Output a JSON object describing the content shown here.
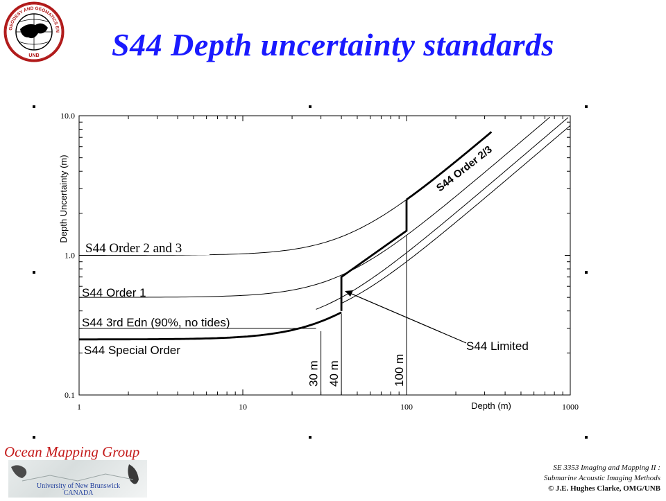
{
  "slide": {
    "title": "S44 Depth uncertainty standards",
    "logo_text_top": "GEODESY AND GEOMATICS ENGINEERING",
    "logo_text_bottom": "UNB",
    "footer_group": "Ocean Mapping Group",
    "footer_university": "University of New Brunswick",
    "footer_country": "CANADA",
    "course_line1": "SE 3353 Imaging and Mapping II :",
    "course_line2": "Submarine Acoustic Imaging Methods",
    "copyright": "© J.E. Hughes Clarke, OMG/UNB"
  },
  "chart_data": {
    "type": "line",
    "title": "",
    "xlabel": "Depth (m)",
    "ylabel": "Depth Uncertainty (m)",
    "xscale": "log",
    "yscale": "log",
    "xlim": [
      1,
      1000
    ],
    "ylim": [
      0.1,
      10.0
    ],
    "x_tick_labels": [
      "1",
      "10",
      "100",
      "1000"
    ],
    "y_tick_labels": [
      "0.1",
      "1.0",
      "10.0"
    ],
    "grid": false,
    "legend": "none",
    "series": [
      {
        "name": "S44 Order 2 and 3",
        "a": 1.0,
        "b": 0.023,
        "style": "thin",
        "x_end": 200
      },
      {
        "name": "S44 Order 1",
        "a": 0.5,
        "b": 0.013,
        "style": "thin",
        "x_end": 1000
      },
      {
        "name": "S44 3rd Edn (90%, no tides)",
        "a": 0.3,
        "b": 0.01,
        "style": "thin-tail",
        "x_start": 28,
        "x_end": 1000
      },
      {
        "name": "S44 Special Order",
        "a": 0.25,
        "b": 0.0075,
        "style": "thick",
        "x_end": 40
      },
      {
        "name": "S44 Limited",
        "style": "thick",
        "points": [
          [
            40,
            0.4
          ],
          [
            40,
            0.7
          ],
          [
            100,
            1.5
          ],
          [
            100,
            2.5
          ]
        ]
      },
      {
        "name": "S44 Order 2/3",
        "a": 1.0,
        "b": 0.023,
        "style": "thick",
        "x_start": 100,
        "x_end": 330
      },
      {
        "name": "",
        "a": 0.3,
        "b": 0.0085,
        "style": "thin",
        "x_start": 40,
        "x_end": 1000
      }
    ],
    "depth_markers": [
      {
        "x": 30,
        "label": "30 m"
      },
      {
        "x": 40,
        "label": "40 m"
      },
      {
        "x": 100,
        "label": "100 m"
      }
    ],
    "annotations": {
      "order23_label": "S44 Order 2/3",
      "limited_label": "S44 Limited"
    }
  }
}
